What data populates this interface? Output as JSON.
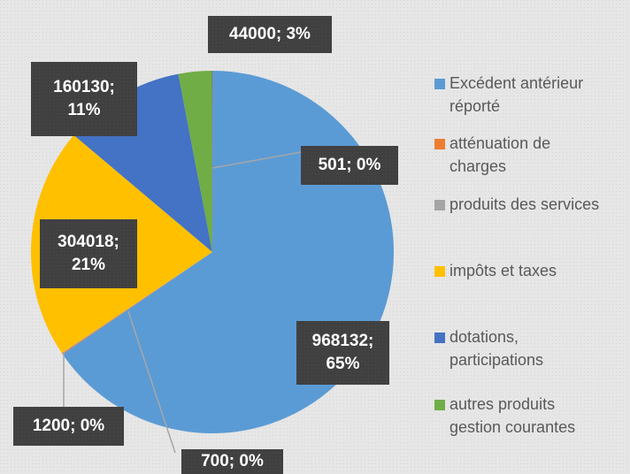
{
  "chart_data": {
    "type": "pie",
    "categories": [
      "Excédent antérieur réporté",
      "atténuation de charges",
      "produits des services",
      "impôts et taxes",
      "dotations, participations",
      "autres produits gestion courantes",
      null
    ],
    "values": [
      968132,
      1200,
      700,
      304018,
      160130,
      44000,
      501
    ],
    "value_labels": [
      "968132; 65%",
      "1200; 0%",
      "700; 0%",
      "304018; 21%",
      "160130; 11%",
      "44000; 3%",
      "501; 0%"
    ],
    "colors": [
      "#5b9bd5",
      "#ed7d31",
      "#a5a5a5",
      "#ffc000",
      "#4472c4",
      "#70ad47",
      "#9e480e"
    ],
    "legend": "right"
  }
}
